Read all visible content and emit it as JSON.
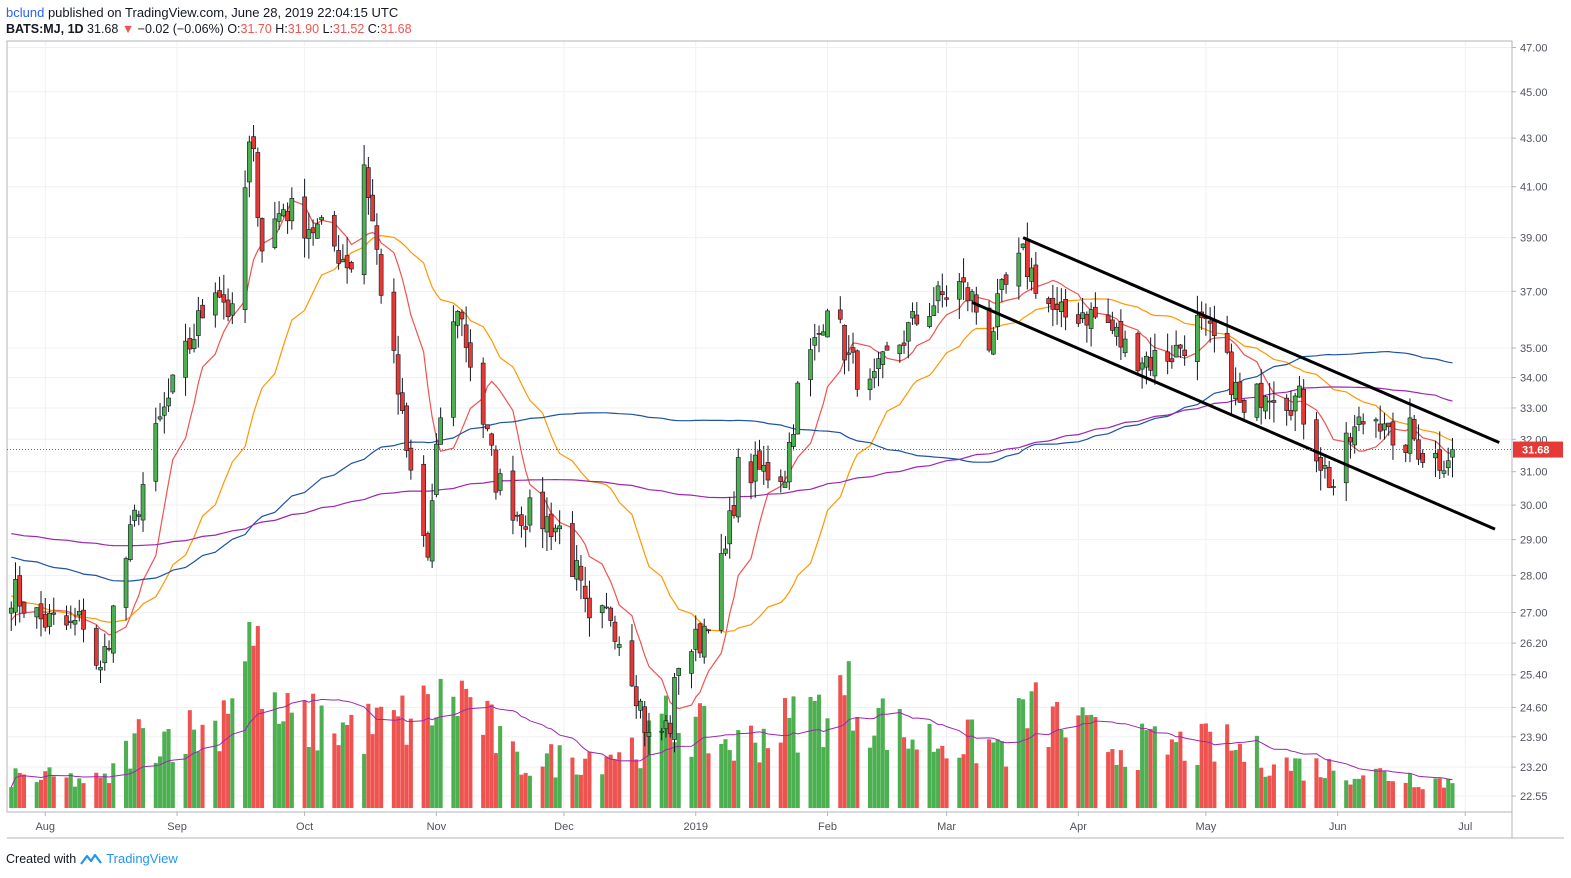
{
  "header": {
    "author": "bclund",
    "published": "published on TradingView.com, June 28, 2019 22:04:15 UTC",
    "symbol": "BATS:MJ, 1D",
    "last": "31.68",
    "change": "−0.02 (−0.06%)",
    "o_label": "O:",
    "o_value": "31.70",
    "h_label": "H:",
    "h_value": "31.90",
    "l_label": "L:",
    "l_value": "31.52",
    "c_label": "C:",
    "c_value": "31.68"
  },
  "footer": {
    "created_with": "Created with",
    "brand": "TradingView"
  },
  "colors": {
    "up": "#4caf50",
    "down": "#e53935",
    "ma_red": "#ef5350",
    "ma_orange": "#ff9800",
    "ma_blue": "#1e53a5",
    "ma_purple": "#9c27b0",
    "price_tag": "#e53935"
  },
  "chart_data": {
    "type": "candlestick",
    "scale": "log",
    "ylim": [
      22.2,
      47.3
    ],
    "y_ticks": [
      "47.00",
      "45.00",
      "43.00",
      "41.00",
      "39.00",
      "37.00",
      "35.00",
      "34.00",
      "33.00",
      "32.00",
      "31.00",
      "30.00",
      "29.00",
      "28.00",
      "27.00",
      "26.20",
      "25.40",
      "24.60",
      "23.90",
      "23.20",
      "22.55"
    ],
    "x_ticks": [
      "Aug",
      "Sep",
      "Oct",
      "Nov",
      "Dec",
      "2019",
      "Feb",
      "Mar",
      "Apr",
      "May",
      "Jun",
      "Jul"
    ],
    "last_price_label": "31.68",
    "anchors": [
      [
        "2018-07-24",
        27.6
      ],
      [
        "2018-07-31",
        26.8
      ],
      [
        "2018-08-07",
        26.6
      ],
      [
        "2018-08-10",
        26.8
      ],
      [
        "2018-08-14",
        25.4
      ],
      [
        "2018-08-17",
        27.0
      ],
      [
        "2018-08-21",
        29.0
      ],
      [
        "2018-08-24",
        30.6
      ],
      [
        "2018-08-28",
        32.5
      ],
      [
        "2018-08-31",
        33.6
      ],
      [
        "2018-09-05",
        35.5
      ],
      [
        "2018-09-10",
        37.4
      ],
      [
        "2018-09-14",
        36.0
      ],
      [
        "2018-09-18",
        42.5
      ],
      [
        "2018-09-19",
        42.0
      ],
      [
        "2018-09-21",
        38.8
      ],
      [
        "2018-09-26",
        40.2
      ],
      [
        "2018-10-01",
        39.6
      ],
      [
        "2018-10-05",
        39.2
      ],
      [
        "2018-10-10",
        38.3
      ],
      [
        "2018-10-12",
        38.0
      ],
      [
        "2018-10-15",
        42.0
      ],
      [
        "2018-10-17",
        39.6
      ],
      [
        "2018-10-19",
        37.2
      ],
      [
        "2018-10-23",
        33.5
      ],
      [
        "2018-10-25",
        31.5
      ],
      [
        "2018-10-30",
        28.5
      ],
      [
        "2018-11-02",
        32.8
      ],
      [
        "2018-11-06",
        36.6
      ],
      [
        "2018-11-08",
        35.2
      ],
      [
        "2018-11-12",
        32.6
      ],
      [
        "2018-11-15",
        30.8
      ],
      [
        "2018-11-20",
        29.8
      ],
      [
        "2018-11-26",
        29.6
      ],
      [
        "2018-11-30",
        29.3
      ],
      [
        "2018-12-04",
        28.0
      ],
      [
        "2018-12-07",
        26.5
      ],
      [
        "2018-12-12",
        27.0
      ],
      [
        "2018-12-17",
        25.5
      ],
      [
        "2018-12-21",
        23.8
      ],
      [
        "2018-12-26",
        24.2
      ],
      [
        "2018-12-28",
        25.8
      ],
      [
        "2019-01-02",
        26.3
      ],
      [
        "2019-01-04",
        27.0
      ],
      [
        "2019-01-08",
        28.6
      ],
      [
        "2019-01-11",
        31.0
      ],
      [
        "2019-01-16",
        31.0
      ],
      [
        "2019-01-22",
        31.0
      ],
      [
        "2019-01-25",
        33.5
      ],
      [
        "2019-01-30",
        35.5
      ],
      [
        "2019-02-01",
        36.8
      ],
      [
        "2019-02-06",
        34.6
      ],
      [
        "2019-02-11",
        33.5
      ],
      [
        "2019-02-15",
        34.6
      ],
      [
        "2019-02-21",
        35.8
      ],
      [
        "2019-02-26",
        36.6
      ],
      [
        "2019-03-04",
        37.2
      ],
      [
        "2019-03-07",
        36.7
      ],
      [
        "2019-03-11",
        35.3
      ],
      [
        "2019-03-14",
        36.8
      ],
      [
        "2019-03-19",
        38.2
      ],
      [
        "2019-03-22",
        37.4
      ],
      [
        "2019-03-27",
        36.0
      ],
      [
        "2019-04-02",
        36.3
      ],
      [
        "2019-04-08",
        35.8
      ],
      [
        "2019-04-12",
        35.0
      ],
      [
        "2019-04-18",
        34.6
      ],
      [
        "2019-04-24",
        34.9
      ],
      [
        "2019-04-29",
        35.8
      ],
      [
        "2019-05-03",
        35.2
      ],
      [
        "2019-05-07",
        34.0
      ],
      [
        "2019-05-10",
        32.6
      ],
      [
        "2019-05-15",
        33.8
      ],
      [
        "2019-05-20",
        33.4
      ],
      [
        "2019-05-23",
        33.2
      ],
      [
        "2019-05-29",
        31.0
      ],
      [
        "2019-05-31",
        30.6
      ],
      [
        "2019-06-04",
        32.0
      ],
      [
        "2019-06-07",
        32.6
      ],
      [
        "2019-06-12",
        32.8
      ],
      [
        "2019-06-14",
        31.3
      ],
      [
        "2019-06-18",
        32.2
      ],
      [
        "2019-06-21",
        31.6
      ],
      [
        "2019-06-25",
        31.4
      ],
      [
        "2019-06-28",
        31.68
      ]
    ],
    "volume_profile": [
      [
        "2018-07-24",
        0.18
      ],
      [
        "2018-08-15",
        0.15
      ],
      [
        "2018-08-23",
        0.4
      ],
      [
        "2018-09-10",
        0.45
      ],
      [
        "2018-09-18",
        1.0
      ],
      [
        "2018-09-24",
        0.5
      ],
      [
        "2018-10-15",
        0.45
      ],
      [
        "2018-10-25",
        0.5
      ],
      [
        "2018-11-07",
        0.65
      ],
      [
        "2018-11-20",
        0.25
      ],
      [
        "2018-12-07",
        0.3
      ],
      [
        "2018-12-18",
        0.35
      ],
      [
        "2018-12-26",
        0.5
      ],
      [
        "2019-01-10",
        0.35
      ],
      [
        "2019-01-30",
        0.55
      ],
      [
        "2019-02-05",
        0.65
      ],
      [
        "2019-02-20",
        0.4
      ],
      [
        "2019-03-15",
        0.35
      ],
      [
        "2019-03-20",
        0.55
      ],
      [
        "2019-04-10",
        0.35
      ],
      [
        "2019-05-06",
        0.35
      ],
      [
        "2019-05-20",
        0.25
      ],
      [
        "2019-06-28",
        0.15
      ]
    ],
    "moving_averages": [
      {
        "color": "red",
        "period": 10
      },
      {
        "color": "orange",
        "period": 30
      },
      {
        "color": "blue",
        "period": 100
      },
      {
        "color": "purple",
        "period": 200
      }
    ],
    "trendlines": [
      {
        "x1": "2019-03-19",
        "y1": 39.0,
        "x2": "2019-07-09",
        "y2": 31.9
      },
      {
        "x1": "2019-03-07",
        "y1": 36.6,
        "x2": "2019-07-08",
        "y2": 29.3
      }
    ]
  }
}
